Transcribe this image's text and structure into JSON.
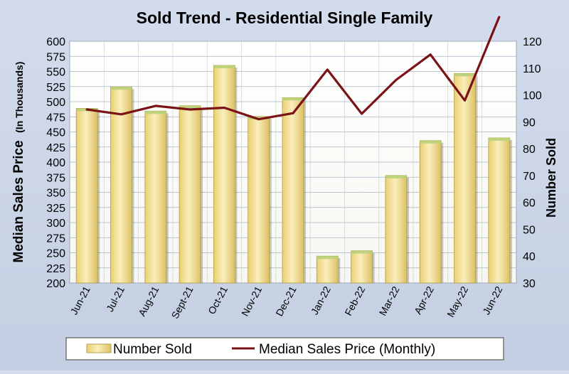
{
  "chart_data": {
    "type": "bar",
    "title": "Sold Trend - Residential Single Family",
    "categories": [
      "Jun-21",
      "Jul-21",
      "Aug-21",
      "Sept-21",
      "Oct-21",
      "Nov-21",
      "Dec-21",
      "Jan-22",
      "Feb-22",
      "Mar-22",
      "Apr-22",
      "May-22",
      "Jun-22"
    ],
    "series": [
      {
        "name": "Number Sold",
        "type": "bar",
        "axis": "right",
        "color": "#f3dc8c",
        "values": [
          95,
          103,
          94,
          96,
          111,
          92,
          99,
          40,
          42,
          70,
          83,
          108,
          84
        ]
      },
      {
        "name": "Median Sales Price (Monthly)",
        "type": "line",
        "axis": "left",
        "color": "#7a1216",
        "values": [
          487,
          479,
          493,
          487,
          490,
          471,
          481,
          553,
          480,
          536,
          578,
          502,
          640
        ]
      }
    ],
    "left_axis": {
      "label": "Median Sales Price",
      "label_sub": "(In Thousands)",
      "range": [
        200,
        600
      ],
      "ticks": [
        200,
        225,
        250,
        275,
        300,
        325,
        350,
        375,
        400,
        425,
        450,
        475,
        500,
        525,
        550,
        575,
        600
      ]
    },
    "right_axis": {
      "label": "Number Sold",
      "range": [
        30,
        120
      ],
      "ticks": [
        30,
        40,
        50,
        60,
        70,
        80,
        90,
        100,
        110,
        120
      ]
    },
    "grid": true,
    "legend_position": "bottom"
  }
}
